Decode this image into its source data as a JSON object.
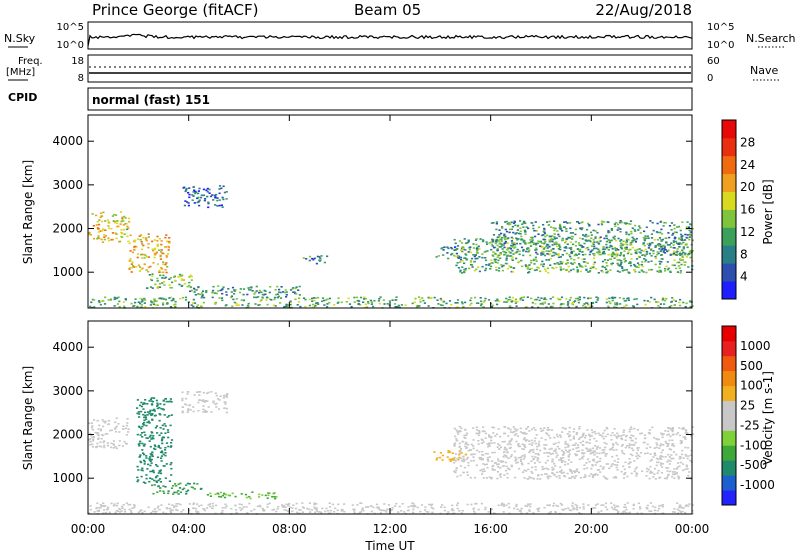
{
  "header": {
    "station": "Prince George (fitACF)",
    "beam": "Beam 05",
    "date": "22/Aug/2018"
  },
  "top_panels": {
    "nsky": {
      "label": "N.Sky",
      "ticks": [
        "10^5",
        "10^0"
      ],
      "right_label": "N.Search",
      "right_ticks": [
        "10^5",
        "10^0"
      ]
    },
    "freq": {
      "label_1": "Freq.",
      "label_2": "[MHz]",
      "ticks": [
        "18",
        "8"
      ],
      "right_label": "Nave",
      "right_ticks": [
        "60",
        "0"
      ]
    },
    "cpid": {
      "label": "CPID",
      "value": "normal (fast) 151"
    }
  },
  "colors": {
    "power_scale": [
      "#1e1eff",
      "#2c4fb0",
      "#2a7f86",
      "#3aa05a",
      "#7fc43a",
      "#d9d920",
      "#f0a020",
      "#f06a10",
      "#e83010",
      "#e80808"
    ],
    "velocity_scale": [
      "#2323ff",
      "#1c5fd0",
      "#1f8a6a",
      "#3fa83a",
      "#7fd13a",
      "#c8c8c8",
      "#c8c8c8",
      "#f0b020",
      "#f08a10",
      "#f05a10",
      "#e82020",
      "#e80000"
    ]
  },
  "chart_data": [
    {
      "type": "heatmap",
      "ylabel": "Slant Range [km]",
      "ylim": [
        180,
        4600
      ],
      "yticks": [
        "4000",
        "3000",
        "2000",
        "1000"
      ],
      "xlim": [
        0,
        24
      ],
      "colorbar": {
        "label": "Power [dB]",
        "ticks": [
          "28",
          "24",
          "20",
          "16",
          "12",
          "8",
          "4"
        ],
        "range": [
          0,
          32
        ]
      },
      "regions": [
        {
          "t0": 0.0,
          "t1": 1.6,
          "r0": 1700,
          "r1": 2400,
          "level": 18
        },
        {
          "t0": 1.6,
          "t1": 3.2,
          "r0": 1000,
          "r1": 1900,
          "level": 20
        },
        {
          "t0": 2.3,
          "t1": 4.2,
          "r0": 650,
          "r1": 1000,
          "level": 14
        },
        {
          "t0": 4.0,
          "t1": 8.5,
          "r0": 450,
          "r1": 700,
          "level": 10
        },
        {
          "t0": 0.0,
          "t1": 24.0,
          "r0": 200,
          "r1": 450,
          "level": 12
        },
        {
          "t0": 8.5,
          "t1": 9.5,
          "r0": 1200,
          "r1": 1400,
          "level": 8
        },
        {
          "t0": 13.8,
          "t1": 15.5,
          "r0": 1300,
          "r1": 1600,
          "level": 8
        },
        {
          "t0": 14.5,
          "t1": 24.0,
          "r0": 1000,
          "r1": 1800,
          "level": 12
        },
        {
          "t0": 16.0,
          "t1": 24.0,
          "r0": 1400,
          "r1": 2200,
          "level": 10
        },
        {
          "t0": 3.7,
          "t1": 5.5,
          "r0": 2500,
          "r1": 3000,
          "level": 6
        }
      ]
    },
    {
      "type": "heatmap",
      "ylabel": "Slant Range [km]",
      "ylim": [
        180,
        4600
      ],
      "yticks": [
        "4000",
        "3000",
        "2000",
        "1000"
      ],
      "xlabel": "Time UT",
      "xticks": [
        "00:00",
        "04:00",
        "08:00",
        "12:00",
        "16:00",
        "20:00",
        "00:00"
      ],
      "xlim": [
        0,
        24
      ],
      "colorbar": {
        "label": "Velocity [m s-1]",
        "ticks": [
          "1000",
          "500",
          "100",
          "25",
          "-25",
          "-100",
          "-500",
          "-1000"
        ],
        "range": [
          -1200,
          1200
        ]
      },
      "regions": [
        {
          "t0": 0.0,
          "t1": 1.6,
          "r0": 1700,
          "r1": 2400,
          "level": 0
        },
        {
          "t0": 1.9,
          "t1": 3.3,
          "r0": 900,
          "r1": 2900,
          "level": -700
        },
        {
          "t0": 2.5,
          "t1": 4.5,
          "r0": 650,
          "r1": 900,
          "level": -600
        },
        {
          "t0": 4.5,
          "t1": 7.5,
          "r0": 550,
          "r1": 700,
          "level": -400
        },
        {
          "t0": 0.0,
          "t1": 24.0,
          "r0": 200,
          "r1": 450,
          "level": 80
        },
        {
          "t0": 13.7,
          "t1": 15.0,
          "r0": 1400,
          "r1": 1650,
          "level": 300
        },
        {
          "t0": 14.5,
          "t1": 24.0,
          "r0": 1000,
          "r1": 2200,
          "level": 0
        },
        {
          "t0": 3.7,
          "t1": 5.5,
          "r0": 2500,
          "r1": 3000,
          "level": 0
        }
      ]
    }
  ]
}
